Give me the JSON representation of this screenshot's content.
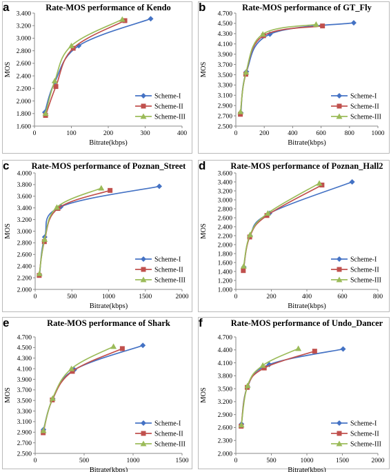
{
  "chart_data": [
    {
      "panel": "a",
      "type": "line",
      "title": "Rate-MOS performance of Kendo",
      "xlabel": "Bitrate(kbps)",
      "ylabel": "MOS",
      "xlim": [
        0,
        400
      ],
      "xticks": [
        0,
        100,
        200,
        300,
        400
      ],
      "xtick_labels": [
        "0",
        "100",
        "200",
        "300",
        "400"
      ],
      "ylim": [
        1.6,
        3.4
      ],
      "yticks": [
        1.6,
        1.8,
        2.0,
        2.2,
        2.4,
        2.6,
        2.8,
        3.0,
        3.2,
        3.4
      ],
      "ytick_labels": [
        "1.600",
        "1.800",
        "2.000",
        "2.200",
        "2.400",
        "2.600",
        "2.800",
        "3.000",
        "3.200",
        "3.400"
      ],
      "grid": false,
      "legend_position": "bottom-right",
      "series": [
        {
          "name": "Scheme-I",
          "color": "#4472C4",
          "marker": "diamond",
          "x": [
            28,
            55,
            120,
            315
          ],
          "y": [
            1.82,
            2.3,
            2.88,
            3.31
          ]
        },
        {
          "name": "Scheme-II",
          "color": "#C0504D",
          "marker": "square",
          "x": [
            30,
            58,
            105,
            245
          ],
          "y": [
            1.77,
            2.23,
            2.84,
            3.28
          ]
        },
        {
          "name": "Scheme-III",
          "color": "#9BBB59",
          "marker": "triangle",
          "x": [
            30,
            55,
            100,
            238
          ],
          "y": [
            1.8,
            2.32,
            2.88,
            3.3
          ]
        }
      ]
    },
    {
      "panel": "b",
      "type": "line",
      "title": "Rate-MOS performance of GT_Fly",
      "xlabel": "Bitrate(kbps)",
      "ylabel": "MOS",
      "xlim": [
        0,
        1000
      ],
      "xticks": [
        0,
        200,
        400,
        600,
        800,
        1000
      ],
      "xtick_labels": [
        "0",
        "200",
        "400",
        "600",
        "800",
        "1000"
      ],
      "ylim": [
        2.5,
        4.7
      ],
      "yticks": [
        2.5,
        2.7,
        2.9,
        3.1,
        3.3,
        3.5,
        3.7,
        3.9,
        4.1,
        4.3,
        4.5,
        4.7
      ],
      "ytick_labels": [
        "2.500",
        "2.700",
        "2.900",
        "3.100",
        "3.300",
        "3.500",
        "3.700",
        "3.900",
        "4.100",
        "4.300",
        "4.500",
        "4.700"
      ],
      "grid": false,
      "legend_position": "bottom-right",
      "series": [
        {
          "name": "Scheme-I",
          "color": "#4472C4",
          "marker": "diamond",
          "x": [
            35,
            75,
            240,
            830
          ],
          "y": [
            2.76,
            3.56,
            4.29,
            4.51
          ]
        },
        {
          "name": "Scheme-II",
          "color": "#C0504D",
          "marker": "square",
          "x": [
            32,
            70,
            195,
            610
          ],
          "y": [
            2.73,
            3.51,
            4.26,
            4.45
          ]
        },
        {
          "name": "Scheme-III",
          "color": "#9BBB59",
          "marker": "triangle",
          "x": [
            33,
            72,
            190,
            565
          ],
          "y": [
            2.78,
            3.55,
            4.29,
            4.48
          ]
        }
      ]
    },
    {
      "panel": "c",
      "type": "line",
      "title": "Rate-MOS performance of Poznan_Street",
      "xlabel": "Bitrate(kbps)",
      "ylabel": "MOS",
      "xlim": [
        0,
        2000
      ],
      "xticks": [
        0,
        500,
        1000,
        1500,
        2000
      ],
      "xtick_labels": [
        "0",
        "500",
        "1000",
        "1500",
        "2000"
      ],
      "ylim": [
        2.0,
        4.0
      ],
      "yticks": [
        2.0,
        2.2,
        2.4,
        2.6,
        2.8,
        3.0,
        3.2,
        3.4,
        3.6,
        3.8,
        4.0
      ],
      "ytick_labels": [
        "2.000",
        "2.200",
        "2.400",
        "2.600",
        "2.800",
        "3.000",
        "3.200",
        "3.400",
        "3.600",
        "3.800",
        "4.000"
      ],
      "grid": false,
      "legend_position": "bottom-right",
      "series": [
        {
          "name": "Scheme-I",
          "color": "#4472C4",
          "marker": "diamond",
          "x": [
            60,
            130,
            350,
            1690
          ],
          "y": [
            2.25,
            2.9,
            3.42,
            3.77
          ]
        },
        {
          "name": "Scheme-II",
          "color": "#C0504D",
          "marker": "square",
          "x": [
            55,
            125,
            310,
            1020
          ],
          "y": [
            2.24,
            2.82,
            3.39,
            3.7
          ]
        },
        {
          "name": "Scheme-III",
          "color": "#9BBB59",
          "marker": "triangle",
          "x": [
            58,
            128,
            295,
            900
          ],
          "y": [
            2.27,
            2.86,
            3.41,
            3.74
          ]
        }
      ]
    },
    {
      "panel": "d",
      "type": "line",
      "title": "Rate-MOS performance of Poznan_Hall2",
      "xlabel": "Bitrate(kbps)",
      "ylabel": "MOS",
      "xlim": [
        0,
        800
      ],
      "xticks": [
        0,
        200,
        400,
        600,
        800
      ],
      "xtick_labels": [
        "0",
        "200",
        "400",
        "600",
        "800"
      ],
      "ylim": [
        1.0,
        3.6
      ],
      "yticks": [
        1.0,
        1.2,
        1.4,
        1.6,
        1.8,
        2.0,
        2.2,
        2.4,
        2.6,
        2.8,
        3.0,
        3.2,
        3.4,
        3.6
      ],
      "ytick_labels": [
        "1.000",
        "1.200",
        "1.400",
        "1.600",
        "1.800",
        "2.000",
        "2.200",
        "2.400",
        "2.600",
        "2.800",
        "3.000",
        "3.200",
        "3.400",
        "3.600"
      ],
      "grid": false,
      "legend_position": "bottom-right",
      "series": [
        {
          "name": "Scheme-I",
          "color": "#4472C4",
          "marker": "diamond",
          "x": [
            45,
            80,
            190,
            655
          ],
          "y": [
            1.5,
            2.2,
            2.7,
            3.4
          ]
        },
        {
          "name": "Scheme-II",
          "color": "#C0504D",
          "marker": "square",
          "x": [
            42,
            78,
            175,
            485
          ],
          "y": [
            1.42,
            2.17,
            2.65,
            3.33
          ]
        },
        {
          "name": "Scheme-III",
          "color": "#9BBB59",
          "marker": "triangle",
          "x": [
            44,
            80,
            180,
            470
          ],
          "y": [
            1.52,
            2.22,
            2.7,
            3.37
          ]
        }
      ]
    },
    {
      "panel": "e",
      "type": "line",
      "title": "Rate-MOS performance of Shark",
      "xlabel": "Bitrate(kbps)",
      "ylabel": "MOS",
      "xlim": [
        0,
        1500
      ],
      "xticks": [
        0,
        500,
        1000,
        1500
      ],
      "xtick_labels": [
        "0",
        "500",
        "1000",
        "1500"
      ],
      "ylim": [
        2.5,
        4.7
      ],
      "yticks": [
        2.5,
        2.7,
        2.9,
        3.1,
        3.3,
        3.5,
        3.7,
        3.9,
        4.1,
        4.3,
        4.5,
        4.7
      ],
      "ytick_labels": [
        "2.500",
        "2.700",
        "2.900",
        "3.100",
        "3.300",
        "3.500",
        "3.700",
        "3.900",
        "4.100",
        "4.300",
        "4.500",
        "4.700"
      ],
      "grid": false,
      "legend_position": "bottom-right",
      "series": [
        {
          "name": "Scheme-I",
          "color": "#4472C4",
          "marker": "diamond",
          "x": [
            85,
            180,
            400,
            1100
          ],
          "y": [
            2.95,
            3.53,
            4.08,
            4.54
          ]
        },
        {
          "name": "Scheme-II",
          "color": "#C0504D",
          "marker": "square",
          "x": [
            82,
            175,
            380,
            890
          ],
          "y": [
            2.89,
            3.51,
            4.05,
            4.48
          ]
        },
        {
          "name": "Scheme-III",
          "color": "#9BBB59",
          "marker": "triangle",
          "x": [
            84,
            178,
            370,
            800
          ],
          "y": [
            2.93,
            3.54,
            4.1,
            4.52
          ]
        }
      ]
    },
    {
      "panel": "f",
      "type": "line",
      "title": "Rate-MOS performance of Undo_Dancer",
      "xlabel": "Bitrate(kbps)",
      "ylabel": "MOS",
      "xlim": [
        0,
        2000
      ],
      "xticks": [
        0,
        500,
        1000,
        1500,
        2000
      ],
      "xtick_labels": [
        "0",
        "500",
        "1000",
        "1500",
        "2000"
      ],
      "ylim": [
        2.0,
        4.7
      ],
      "yticks": [
        2.0,
        2.3,
        2.6,
        2.9,
        3.2,
        3.5,
        3.8,
        4.1,
        4.4,
        4.7
      ],
      "ytick_labels": [
        "2.000",
        "2.300",
        "2.600",
        "2.900",
        "3.200",
        "3.500",
        "3.800",
        "4.100",
        "4.400",
        "4.700"
      ],
      "grid": false,
      "legend_position": "bottom-right",
      "series": [
        {
          "name": "Scheme-I",
          "color": "#4472C4",
          "marker": "diamond",
          "x": [
            80,
            165,
            470,
            1510
          ],
          "y": [
            2.68,
            3.55,
            4.06,
            4.42
          ]
        },
        {
          "name": "Scheme-II",
          "color": "#C0504D",
          "marker": "square",
          "x": [
            75,
            160,
            400,
            1110
          ],
          "y": [
            2.63,
            3.53,
            3.98,
            4.37
          ]
        },
        {
          "name": "Scheme-III",
          "color": "#9BBB59",
          "marker": "triangle",
          "x": [
            78,
            165,
            380,
            880
          ],
          "y": [
            2.66,
            3.57,
            4.04,
            4.43
          ]
        }
      ]
    }
  ]
}
